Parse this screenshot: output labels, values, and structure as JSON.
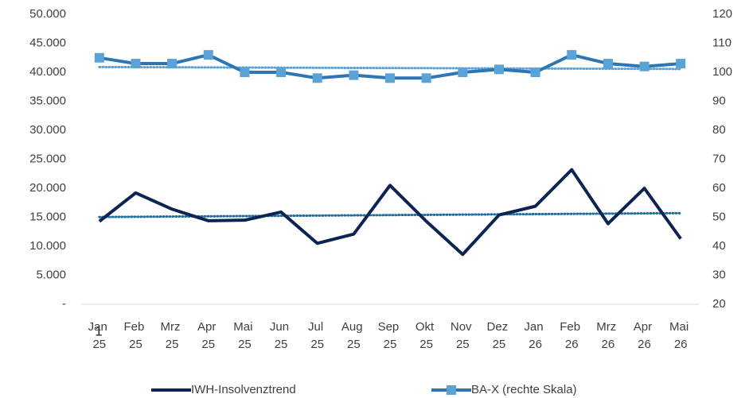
{
  "chart_data": {
    "type": "line",
    "annotation": "1",
    "categories": [
      "Jan 25",
      "Feb 25",
      "Mrz 25",
      "Apr 25",
      "Mai 25",
      "Jun 25",
      "Jul 25",
      "Aug 25",
      "Sep 25",
      "Okt 25",
      "Nov 25",
      "Dez 25",
      "Jan 26",
      "Feb 26",
      "Mrz 26",
      "Apr 26",
      "Mai 26"
    ],
    "series": [
      {
        "name": "IWH-Insolvenztrend",
        "color": "#0d2453",
        "trend_color": "#1f6f9e",
        "axis": "y",
        "values": [
          14300,
          19200,
          16400,
          14400,
          14500,
          15900,
          10500,
          12100,
          20500,
          14300,
          8600,
          15400,
          16900,
          23200,
          13900,
          20000,
          11300
        ]
      },
      {
        "name": "BA-X (rechte Skala)",
        "color": "#2e75b6",
        "marker_color": "#5ba3d6",
        "trend_color": "#5ba3d6",
        "axis": "y2",
        "marker": "square",
        "values": [
          105,
          103,
          103,
          106,
          100,
          100,
          98,
          99,
          98,
          98,
          100,
          101,
          100,
          106,
          103,
          102,
          103
        ]
      }
    ],
    "trendline": true,
    "ylim": [
      0,
      50000
    ],
    "yticks": [
      {
        "value": 0,
        "label": "-"
      },
      {
        "value": 5000,
        "label": "5.000"
      },
      {
        "value": 10000,
        "label": "10.000"
      },
      {
        "value": 15000,
        "label": "15.000"
      },
      {
        "value": 20000,
        "label": "20.000"
      },
      {
        "value": 25000,
        "label": "25.000"
      },
      {
        "value": 30000,
        "label": "30.000"
      },
      {
        "value": 35000,
        "label": "35.000"
      },
      {
        "value": 40000,
        "label": "40.000"
      },
      {
        "value": 45000,
        "label": "45.000"
      },
      {
        "value": 50000,
        "label": "50.000"
      }
    ],
    "y2lim": [
      20,
      120
    ],
    "y2ticks": [
      20,
      30,
      40,
      50,
      60,
      70,
      80,
      90,
      100,
      110,
      120
    ],
    "grid": false,
    "legend": "bottom"
  }
}
